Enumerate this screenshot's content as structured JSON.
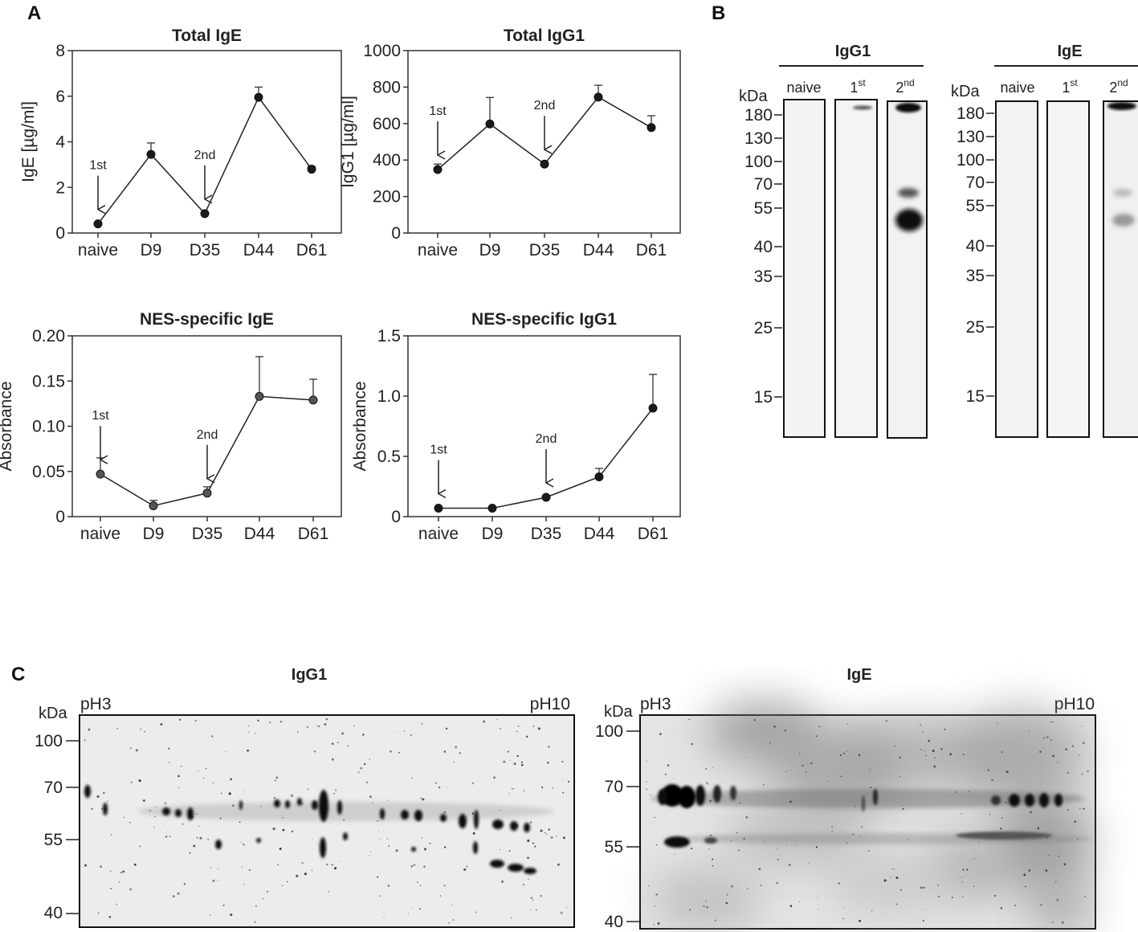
{
  "panel_labels": {
    "a": "A",
    "b": "B",
    "c": "C"
  },
  "chart_data": [
    {
      "type": "line",
      "title": "Total IgE",
      "ylabel": "IgE [µg/ml]",
      "categories": [
        "naive",
        "D9",
        "D35",
        "D44",
        "D61"
      ],
      "values": [
        0.4,
        3.45,
        0.85,
        5.95,
        2.8
      ],
      "error_up": [
        0.05,
        0.5,
        0.05,
        0.45,
        0.12
      ],
      "ylim": [
        0,
        8
      ],
      "yticks": [
        "0",
        "2",
        "4",
        "6",
        "8"
      ],
      "annotations": [
        {
          "text": "1st",
          "category": "naive"
        },
        {
          "text": "2nd",
          "category": "D35"
        }
      ],
      "marker_color": "#1a1a1a"
    },
    {
      "type": "line",
      "title": "Total IgG1",
      "ylabel": "IgG1 [µg/ml]",
      "categories": [
        "naive",
        "D9",
        "D35",
        "D44",
        "D61"
      ],
      "values": [
        348,
        598,
        378,
        745,
        578
      ],
      "error_up": [
        30,
        145,
        10,
        65,
        65
      ],
      "ylim": [
        0,
        1000
      ],
      "yticks": [
        "0",
        "200",
        "400",
        "600",
        "800",
        "1000"
      ],
      "annotations": [
        {
          "text": "1st",
          "category": "naive"
        },
        {
          "text": "2nd",
          "category": "D35"
        }
      ],
      "marker_color": "#1a1a1a"
    },
    {
      "type": "line",
      "title": "NES-specific IgE",
      "ylabel": "Absorbance",
      "categories": [
        "naive",
        "D9",
        "D35",
        "D44",
        "D61"
      ],
      "values": [
        0.047,
        0.012,
        0.026,
        0.133,
        0.129
      ],
      "error_up": [
        0.018,
        0.006,
        0.007,
        0.044,
        0.023
      ],
      "ylim": [
        0,
        0.2
      ],
      "yticks": [
        "0",
        "0.05",
        "0.10",
        "0.15",
        "0.20"
      ],
      "annotations": [
        {
          "text": "1st",
          "category": "naive"
        },
        {
          "text": "2nd",
          "category": "D35"
        }
      ],
      "marker_color": "#555555"
    },
    {
      "type": "line",
      "title": "NES-specific IgG1",
      "ylabel": "Absorbance",
      "categories": [
        "naive",
        "D9",
        "D35",
        "D44",
        "D61"
      ],
      "values": [
        0.07,
        0.07,
        0.16,
        0.33,
        0.9
      ],
      "error_up": [
        0.0,
        0.0,
        0.0,
        0.07,
        0.28
      ],
      "ylim": [
        0,
        1.5
      ],
      "yticks": [
        "0",
        "0.5",
        "1.0",
        "1.5"
      ],
      "annotations": [
        {
          "text": "1st",
          "category": "naive"
        },
        {
          "text": "2nd",
          "category": "D35"
        }
      ],
      "marker_color": "#1a1a1a"
    }
  ],
  "western_blots": [
    {
      "title": "IgG1",
      "unit": "kDa",
      "markers": [
        "180",
        "130",
        "100",
        "70",
        "55",
        "40",
        "35",
        "25",
        "15"
      ],
      "lanes": [
        {
          "label": "naive",
          "sup": ""
        },
        {
          "label": "1",
          "sup": "st"
        },
        {
          "label": "2",
          "sup": "nd"
        }
      ]
    },
    {
      "title": "IgE",
      "unit": "kDa",
      "markers": [
        "180",
        "130",
        "100",
        "70",
        "55",
        "40",
        "35",
        "25",
        "15"
      ],
      "lanes": [
        {
          "label": "naive",
          "sup": ""
        },
        {
          "label": "1",
          "sup": "st"
        },
        {
          "label": "2",
          "sup": "nd"
        }
      ]
    }
  ],
  "two_d_blots": [
    {
      "title": "IgG1",
      "unit": "kDa",
      "ph_left": "pH3",
      "ph_right": "pH10",
      "markers": [
        "100",
        "70",
        "55",
        "40"
      ]
    },
    {
      "title": "IgE",
      "unit": "kDa",
      "ph_left": "pH3",
      "ph_right": "pH10",
      "markers": [
        "100",
        "70",
        "55",
        "40"
      ]
    }
  ]
}
